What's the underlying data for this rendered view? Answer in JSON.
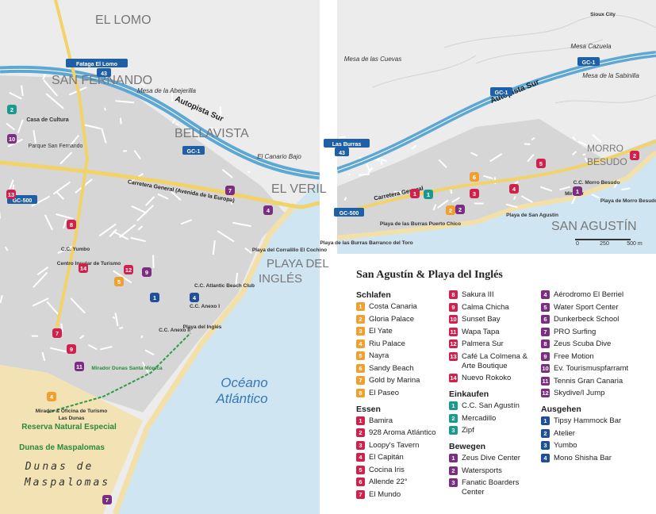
{
  "left_map": {
    "labels": [
      "EL LOMO",
      "SAN FERNANDO",
      "BELLAVISTA",
      "EL VERIL",
      "PLAYA DEL",
      "INGLÉS",
      "Autopista Sur",
      "Mesa de la Abejerilla",
      "El Canario Bajo",
      "Carretera General (Avenida de la Europa)",
      "Océano",
      "Atlántico",
      "Reserva Natural Especial",
      "Dunas de Maspalomas",
      "Dunas de",
      "Maspalomas",
      "Mirador & Oficina de Turismo",
      "Las Dunas",
      "Mirador Dunas Santa Mónica",
      "Playa del Inglés",
      "C.C. Yumbo",
      "Centro Insular de Turismo",
      "C.C. Atlantic Beach Club",
      "Playa del Corralillo El Cochino",
      "Casa de Cultura",
      "Parque San Fernando",
      "C.C. Anexo I",
      "C.C. Anexo II"
    ],
    "signs": [
      "GC-1",
      "GC-500",
      "Fataga El Lomo",
      "43"
    ],
    "markers": [
      {
        "num": "7",
        "color": "#7b2d82"
      },
      {
        "num": "7",
        "color": "#7b2d82"
      },
      {
        "num": "2",
        "color": "#1a9a8e"
      },
      {
        "num": "10",
        "color": "#7b2d82"
      },
      {
        "num": "13",
        "color": "#d0214c"
      },
      {
        "num": "8",
        "color": "#d0214c"
      },
      {
        "num": "14",
        "color": "#d0214c"
      },
      {
        "num": "9",
        "color": "#d0214c"
      },
      {
        "num": "11",
        "color": "#7b2d82"
      },
      {
        "num": "7",
        "color": "#d0214c"
      },
      {
        "num": "4",
        "color": "#f0a030"
      },
      {
        "num": "9",
        "color": "#7b2d82"
      },
      {
        "num": "1",
        "color": "#1f4e9a"
      },
      {
        "num": "5",
        "color": "#f0a030"
      },
      {
        "num": "4",
        "color": "#7b2d82"
      },
      {
        "num": "4",
        "color": "#1f4e9a"
      },
      {
        "num": "12",
        "color": "#d0214c"
      }
    ]
  },
  "right_map": {
    "labels": [
      "Mesa de las Cuevas",
      "Mesa Cazuela",
      "Sioux City",
      "Autopista Sur",
      "Mesa de la Sabinilla",
      "MORRO",
      "BESUDO",
      "SAN AGUSTÍN",
      "Playa de San Agustín",
      "Playa de Morro Besudo",
      "Mirador",
      "C.C. Morro Besudo",
      "Carretera General",
      "Playa de las Burras Puerto Chico",
      "Playa de las Burras Barranco del Toro"
    ],
    "signs": [
      "GC-1",
      "GC-1",
      "Las Burras",
      "43",
      "GC-500"
    ],
    "scale": [
      "0",
      "250",
      "500 m"
    ],
    "markers": [
      {
        "num": "1",
        "color": "#7b2d82"
      },
      {
        "num": "2",
        "color": "#d0214c"
      },
      {
        "num": "6",
        "color": "#f0a030"
      },
      {
        "num": "1",
        "color": "#1a9a8e"
      },
      {
        "num": "1",
        "color": "#d0214c"
      },
      {
        "num": "3",
        "color": "#d0214c"
      },
      {
        "num": "4",
        "color": "#d0214c"
      },
      {
        "num": "2",
        "color": "#7b2d82"
      },
      {
        "num": "2",
        "color": "#f0a030"
      },
      {
        "num": "5",
        "color": "#d0214c"
      }
    ]
  },
  "legend": {
    "title": "San Agustín & Playa del Inglés",
    "columns": [
      [
        {
          "heading": "Schlafen",
          "color": "#f0a030",
          "items": [
            {
              "num": "1",
              "name": "Costa Canaria"
            },
            {
              "num": "2",
              "name": "Gloria Palace"
            },
            {
              "num": "3",
              "name": "El Yate"
            },
            {
              "num": "4",
              "name": "Riu Palace"
            },
            {
              "num": "5",
              "name": "Nayra"
            },
            {
              "num": "6",
              "name": "Sandy Beach"
            },
            {
              "num": "7",
              "name": "Gold by Marina"
            },
            {
              "num": "8",
              "name": "El Paseo"
            }
          ]
        },
        {
          "heading": "Essen",
          "color": "#d0214c",
          "items": [
            {
              "num": "1",
              "name": "Bamira"
            },
            {
              "num": "2",
              "name": "928 Aroma Atlántico"
            },
            {
              "num": "3",
              "name": "Loopy's Tavern"
            },
            {
              "num": "4",
              "name": "El Capitán"
            },
            {
              "num": "5",
              "name": "Cocina Iris"
            },
            {
              "num": "6",
              "name": "Allende 22°"
            },
            {
              "num": "7",
              "name": "El Mundo"
            }
          ]
        }
      ],
      [
        {
          "color": "#d0214c",
          "items": [
            {
              "num": "8",
              "name": "Sakura III"
            },
            {
              "num": "9",
              "name": "Calma Chicha"
            },
            {
              "num": "10",
              "name": "Sunset Bay"
            },
            {
              "num": "11",
              "name": "Wapa Tapa"
            },
            {
              "num": "12",
              "name": "Palmera Sur"
            },
            {
              "num": "13",
              "name": "Café La Colmena & Arte Boutique"
            },
            {
              "num": "14",
              "name": "Nuevo Rokoko"
            }
          ]
        },
        {
          "heading": "Einkaufen",
          "color": "#1a9a8e",
          "items": [
            {
              "num": "1",
              "name": "C.C. San Agustín"
            },
            {
              "num": "2",
              "name": "Mercadillo"
            },
            {
              "num": "3",
              "name": "Zipf"
            }
          ]
        },
        {
          "heading": "Bewegen",
          "color": "#7b2d82",
          "items": [
            {
              "num": "1",
              "name": "Zeus Dive Center"
            },
            {
              "num": "2",
              "name": "Watersports"
            },
            {
              "num": "3",
              "name": "Fanatic Boarders Center"
            }
          ]
        }
      ],
      [
        {
          "color": "#7b2d82",
          "items": [
            {
              "num": "4",
              "name": "Aérodromo El Berriel"
            },
            {
              "num": "5",
              "name": "Water Sport Center"
            },
            {
              "num": "6",
              "name": "Dunkerbeck School"
            },
            {
              "num": "7",
              "name": "PRO Surfing"
            },
            {
              "num": "8",
              "name": "Zeus Scuba Dive"
            },
            {
              "num": "9",
              "name": "Free Motion"
            },
            {
              "num": "10",
              "name": "Ev. Tourismuspfarramt"
            },
            {
              "num": "11",
              "name": "Tennis Gran Canaria"
            },
            {
              "num": "12",
              "name": "Skydive/I Jump"
            }
          ]
        },
        {
          "heading": "Ausgehen",
          "color": "#1f4e9a",
          "items": [
            {
              "num": "1",
              "name": "Tipsy Hammock Bar"
            },
            {
              "num": "2",
              "name": "Atelier"
            },
            {
              "num": "3",
              "name": "Yumbo"
            },
            {
              "num": "4",
              "name": "Mono Shisha Bar"
            }
          ]
        }
      ]
    ]
  }
}
